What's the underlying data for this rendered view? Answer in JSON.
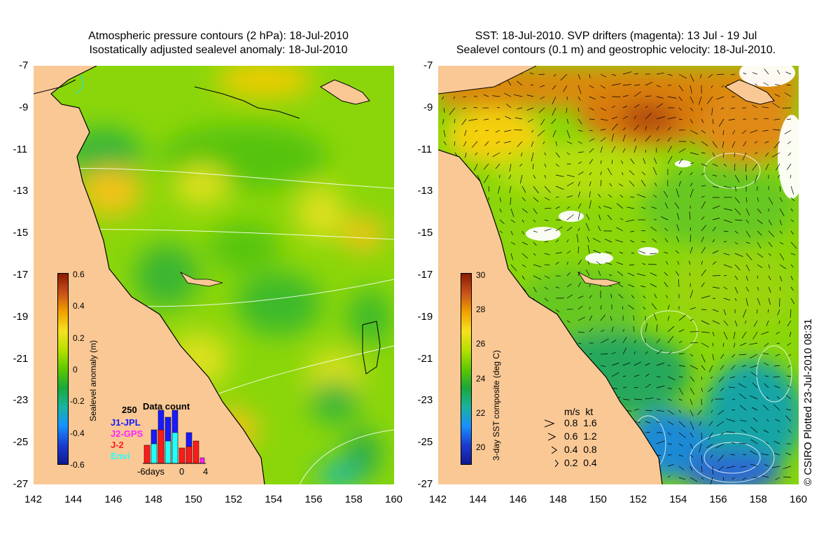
{
  "left_panel": {
    "title_line1": "Atmospheric pressure contours (2 hPa): 18-Jul-2010",
    "title_line2": "Isostatically adjusted sealevel anomaly: 18-Jul-2010",
    "colorbar": {
      "label": "Sealevel anomaly (m)",
      "ticks": [
        "0.6",
        "0.4",
        "0.2",
        "0",
        "-0.2",
        "-0.4",
        "-0.6"
      ],
      "colors": [
        "#8b1a00",
        "#c8501a",
        "#f0a000",
        "#f7e020",
        "#b8e000",
        "#5ec900",
        "#1aa83a",
        "#19b3a0",
        "#1890ff",
        "#1a3cd0",
        "#101a90"
      ]
    },
    "data_count": {
      "title": "Data count",
      "max_label": "250",
      "series": [
        {
          "name": "J1-JPL",
          "color": "#1a1aff"
        },
        {
          "name": "J2-GPS",
          "color": "#ff22ff"
        },
        {
          "name": "J-2",
          "color": "#ff1a1a"
        },
        {
          "name": "Envi",
          "color": "#22ffff"
        }
      ],
      "x_labels": [
        "-6days",
        "0",
        "4"
      ]
    }
  },
  "right_panel": {
    "title_line1": "SST: 18-Jul-2010. SVP drifters (magenta): 13 Jul - 19 Jul",
    "title_line2": "Sealevel contours (0.1 m) and geostrophic velocity: 18-Jul-2010.",
    "colorbar": {
      "label": "3-day SST composite (deg C)",
      "ticks": [
        "30",
        "28",
        "26",
        "24",
        "22",
        "20"
      ],
      "colors": [
        "#8b1a00",
        "#c8501a",
        "#f0a000",
        "#f7e020",
        "#b8e000",
        "#5ec900",
        "#1aa83a",
        "#19b3a0",
        "#1890ff",
        "#1a3cd0",
        "#101a90"
      ]
    },
    "velocity_legend": {
      "header": "m/s  kt",
      "rows": [
        "0.8  1.6",
        "0.6  1.2",
        "0.4  0.8",
        "0.2  0.4"
      ]
    }
  },
  "axes": {
    "lat_ticks": [
      "-7",
      "-9",
      "-11",
      "-13",
      "-15",
      "-17",
      "-19",
      "-21",
      "-23",
      "-25",
      "-27"
    ],
    "lon_ticks": [
      "142",
      "144",
      "146",
      "148",
      "150",
      "152",
      "154",
      "156",
      "158",
      "160"
    ]
  },
  "credit": "© CSIRO Plotted 23-Jul-2010 08:31"
}
